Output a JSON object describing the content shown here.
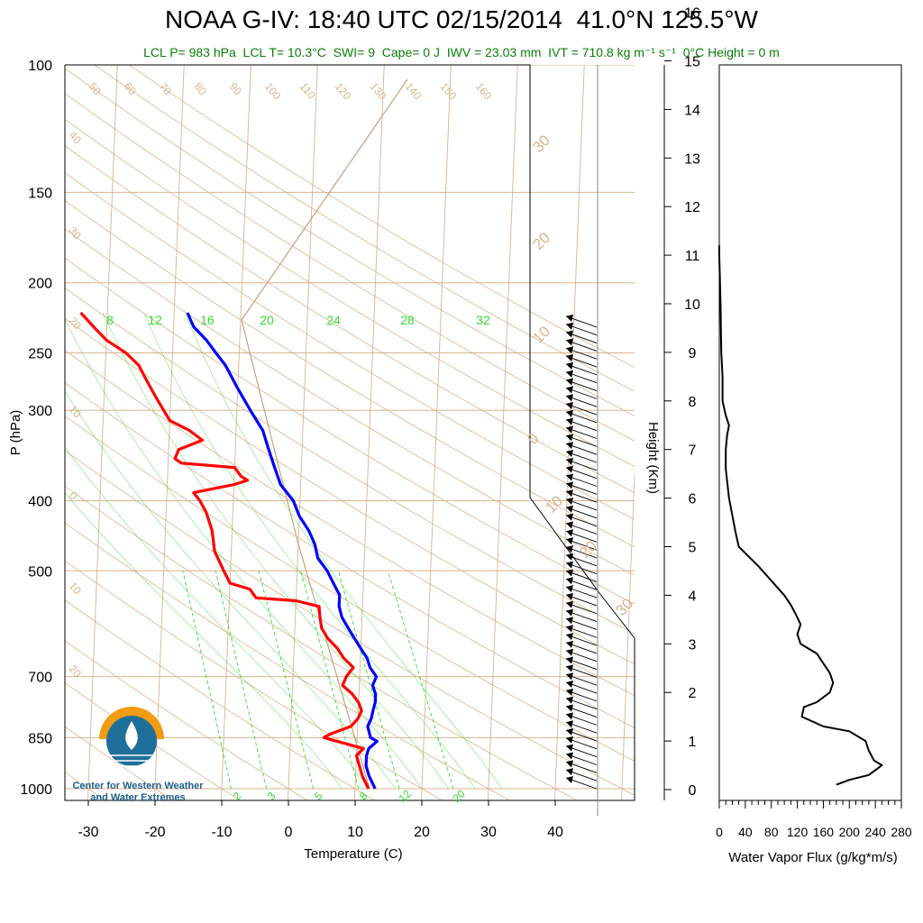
{
  "title": "NOAA G-IV: 18:40 UTC 02/15/2014  41.0°N 125.5°W",
  "subtitle": "LCL P= 983 hPa  LCL T= 10.3°C  SWI= 9  Cape= 0 J  IWV = 23.03 mm  IVT = 710.8 kg m⁻¹ s⁻¹  0°C Height = 0 m",
  "logo": {
    "line1": "Center for Western Weather",
    "line2": "and Water Extremes",
    "colors": {
      "sun": "#f39c12",
      "water": "#1f6f9b"
    }
  },
  "colors": {
    "temperature": "#ff0000",
    "dewpoint": "#0000ff",
    "isotherm": "#d8b48f",
    "mixing_ratio": "#33dd33",
    "parcel": "#c9a07c",
    "flux": "#000000"
  },
  "chart_data": [
    {
      "type": "line",
      "subtype": "skew-t",
      "xlabel": "Temperature (C)",
      "ylabel": "P (hPa)",
      "xlim": [
        -35,
        52
      ],
      "ylim": [
        1000,
        100
      ],
      "y_scale": "log",
      "x_ticks": [
        -30,
        -20,
        -10,
        0,
        10,
        20,
        30,
        40
      ],
      "y_ticks": [
        100,
        150,
        200,
        250,
        300,
        400,
        500,
        700,
        850,
        1000
      ],
      "isotherm_labels": [
        {
          "t": 50,
          "text": "50"
        },
        {
          "t": 60,
          "text": "60"
        },
        {
          "t": 70,
          "text": "70"
        },
        {
          "t": 80,
          "text": "80"
        },
        {
          "t": 90,
          "text": "90"
        },
        {
          "t": 100,
          "text": "100"
        },
        {
          "t": 110,
          "text": "110"
        },
        {
          "t": 120,
          "text": "120"
        },
        {
          "t": 130,
          "text": "130"
        },
        {
          "t": 140,
          "text": "140"
        },
        {
          "t": 150,
          "text": "150"
        },
        {
          "t": 160,
          "text": "160"
        }
      ],
      "left_labels": [
        "40",
        "30",
        "20",
        "10",
        "0",
        "10",
        "20"
      ],
      "right_labels": [
        "30",
        "20",
        "10",
        "0",
        "10",
        "20",
        "30"
      ],
      "mixing_ratio_top_labels": [
        "8",
        "12",
        "16",
        "20",
        "24",
        "28",
        "32"
      ],
      "mixing_ratio_bottom_labels": [
        "2",
        "3",
        "5",
        "8",
        "12",
        "20"
      ],
      "series": [
        {
          "name": "Temperature",
          "points": [
            [
              1000,
              12.0
            ],
            [
              980,
              11.5
            ],
            [
              960,
              11.0
            ],
            [
              930,
              10.5
            ],
            [
              900,
              10.0
            ],
            [
              880,
              11.0
            ],
            [
              860,
              7.0
            ],
            [
              850,
              5.0
            ],
            [
              840,
              6.0
            ],
            [
              820,
              9.0
            ],
            [
              800,
              10.0
            ],
            [
              780,
              10.5
            ],
            [
              760,
              10.0
            ],
            [
              740,
              9.0
            ],
            [
              720,
              7.5
            ],
            [
              700,
              8.0
            ],
            [
              680,
              9.0
            ],
            [
              660,
              7.5
            ],
            [
              640,
              6.5
            ],
            [
              620,
              5.0
            ],
            [
              600,
              4.0
            ],
            [
              580,
              3.7
            ],
            [
              560,
              3.5
            ],
            [
              550,
              0.0
            ],
            [
              545,
              -6.0
            ],
            [
              530,
              -7.0
            ],
            [
              520,
              -10.0
            ],
            [
              500,
              -11.0
            ],
            [
              470,
              -12.5
            ],
            [
              440,
              -13.0
            ],
            [
              415,
              -14.0
            ],
            [
              400,
              -15.0
            ],
            [
              390,
              -16.0
            ],
            [
              385,
              -13.0
            ],
            [
              380,
              -10.0
            ],
            [
              375,
              -8.0
            ],
            [
              370,
              -9.0
            ],
            [
              360,
              -10.0
            ],
            [
              355,
              -18.0
            ],
            [
              350,
              -19.0
            ],
            [
              340,
              -18.5
            ],
            [
              330,
              -15.0
            ],
            [
              320,
              -17.0
            ],
            [
              310,
              -20.0
            ],
            [
              300,
              -21.0
            ],
            [
              290,
              -22.0
            ],
            [
              280,
              -23.0
            ],
            [
              270,
              -24.0
            ],
            [
              260,
              -25.0
            ],
            [
              250,
              -27.0
            ],
            [
              240,
              -30.0
            ],
            [
              230,
              -32.0
            ],
            [
              220,
              -34.0
            ]
          ]
        },
        {
          "name": "Dewpoint",
          "points": [
            [
              1000,
              13.0
            ],
            [
              980,
              12.5
            ],
            [
              960,
              12.0
            ],
            [
              930,
              11.5
            ],
            [
              900,
              11.5
            ],
            [
              880,
              11.8
            ],
            [
              860,
              13.0
            ],
            [
              850,
              12.0
            ],
            [
              820,
              11.5
            ],
            [
              800,
              12.0
            ],
            [
              780,
              12.2
            ],
            [
              760,
              12.5
            ],
            [
              740,
              12.5
            ],
            [
              720,
              12.0
            ],
            [
              700,
              12.5
            ],
            [
              680,
              11.5
            ],
            [
              660,
              11.0
            ],
            [
              640,
              10.0
            ],
            [
              620,
              9.0
            ],
            [
              600,
              8.0
            ],
            [
              580,
              7.0
            ],
            [
              560,
              6.5
            ],
            [
              540,
              6.5
            ],
            [
              520,
              5.5
            ],
            [
              500,
              4.5
            ],
            [
              480,
              3.0
            ],
            [
              460,
              2.5
            ],
            [
              440,
              1.5
            ],
            [
              420,
              0.0
            ],
            [
              400,
              -1.0
            ],
            [
              380,
              -3.0
            ],
            [
              360,
              -4.0
            ],
            [
              340,
              -5.0
            ],
            [
              320,
              -6.0
            ],
            [
              300,
              -8.0
            ],
            [
              280,
              -10.0
            ],
            [
              260,
              -12.0
            ],
            [
              250,
              -13.5
            ],
            [
              240,
              -15.0
            ],
            [
              230,
              -17.0
            ],
            [
              220,
              -18.0
            ]
          ]
        }
      ]
    },
    {
      "type": "line",
      "xlabel": "Water Vapor Flux (g/kg*m/s)",
      "ylabel": "Height (Km)",
      "xlim": [
        0,
        280
      ],
      "ylim": [
        -0.3,
        16.4
      ],
      "x_ticks": [
        0,
        40,
        80,
        120,
        160,
        200,
        240,
        280
      ],
      "y_ticks": [
        0,
        1,
        2,
        3,
        4,
        5,
        6,
        7,
        8,
        9,
        10,
        11,
        12,
        13,
        14,
        15,
        16
      ],
      "series": [
        {
          "name": "Water Vapor Flux",
          "points": [
            [
              180,
              0.1
            ],
            [
              200,
              0.2
            ],
            [
              230,
              0.3
            ],
            [
              240,
              0.4
            ],
            [
              250,
              0.5
            ],
            [
              238,
              0.6
            ],
            [
              230,
              0.8
            ],
            [
              225,
              1.0
            ],
            [
              200,
              1.2
            ],
            [
              160,
              1.3
            ],
            [
              127,
              1.5
            ],
            [
              130,
              1.7
            ],
            [
              150,
              1.8
            ],
            [
              170,
              2.0
            ],
            [
              175,
              2.2
            ],
            [
              170,
              2.4
            ],
            [
              160,
              2.6
            ],
            [
              150,
              2.8
            ],
            [
              125,
              3.0
            ],
            [
              120,
              3.2
            ],
            [
              125,
              3.4
            ],
            [
              118,
              3.6
            ],
            [
              110,
              3.8
            ],
            [
              100,
              4.0
            ],
            [
              80,
              4.3
            ],
            [
              60,
              4.6
            ],
            [
              45,
              4.8
            ],
            [
              30,
              5.0
            ],
            [
              25,
              5.3
            ],
            [
              15,
              6.0
            ],
            [
              10,
              6.6
            ],
            [
              10,
              7.0
            ],
            [
              12,
              7.3
            ],
            [
              15,
              7.5
            ],
            [
              10,
              7.7
            ],
            [
              5,
              8.0
            ],
            [
              5,
              8.5
            ],
            [
              3,
              9.0
            ],
            [
              2,
              10.0
            ],
            [
              0,
              11.0
            ],
            [
              0,
              11.2
            ]
          ]
        }
      ]
    }
  ]
}
